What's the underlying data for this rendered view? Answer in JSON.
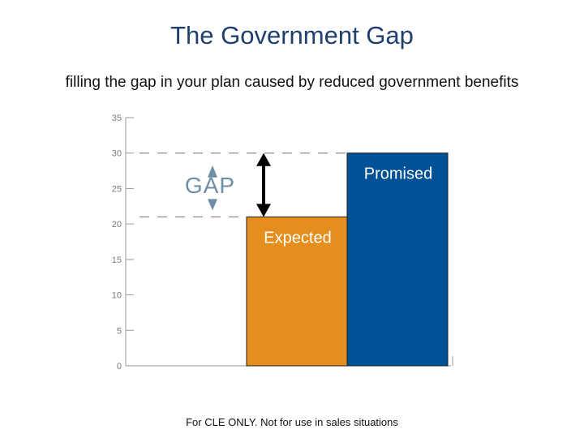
{
  "slide": {
    "title": "The Government Gap",
    "subtitle": "filling the gap in your plan caused by reduced government benefits",
    "footer": "For CLE ONLY.  Not for use in sales situations"
  },
  "chart_data": {
    "type": "bar",
    "categories": [
      "Expected",
      "Promised"
    ],
    "values": [
      21,
      30
    ],
    "colors": [
      "#e58e1e",
      "#005196"
    ],
    "ylim": [
      0,
      35
    ],
    "yticks": [
      0,
      5,
      10,
      15,
      20,
      25,
      30,
      35
    ],
    "grid": false,
    "annotation": {
      "label": "GAP",
      "from": 21,
      "to": 30,
      "color": "#6f8fa6",
      "arrow_color": "#000000"
    }
  }
}
